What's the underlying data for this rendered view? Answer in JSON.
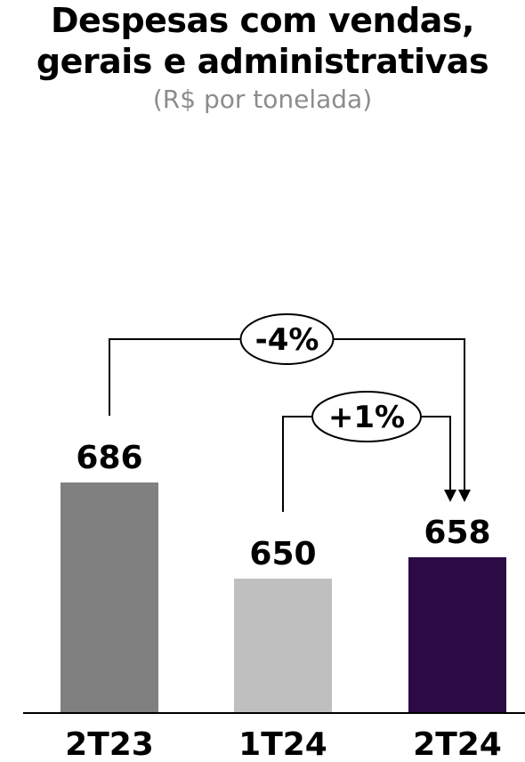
{
  "chart_data": {
    "type": "bar",
    "title": [
      "Despesas com vendas,",
      "gerais e administrativas"
    ],
    "subtitle": "(R$ por tonelada)",
    "categories": [
      "2T23",
      "1T24",
      "2T24"
    ],
    "values": [
      686,
      650,
      658
    ],
    "colors": [
      "#808080",
      "#bfbfbf",
      "#2b0a45"
    ],
    "annotations": [
      {
        "label": "-4%",
        "from": "2T23",
        "to": "2T24"
      },
      {
        "label": "+1%",
        "from": "1T24",
        "to": "2T24"
      }
    ]
  }
}
